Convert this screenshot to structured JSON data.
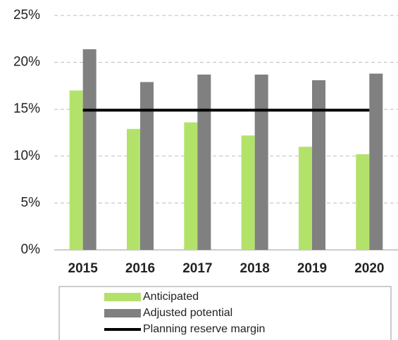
{
  "chart_data": {
    "type": "bar",
    "categories": [
      "2015",
      "2016",
      "2017",
      "2018",
      "2019",
      "2020"
    ],
    "series": [
      {
        "name": "Anticipated",
        "color": "#b3e26a",
        "type": "bar",
        "values": [
          17.0,
          12.9,
          13.6,
          12.2,
          11.0,
          10.2
        ]
      },
      {
        "name": "Adjusted potential",
        "color": "#808080",
        "type": "bar",
        "values": [
          21.4,
          17.9,
          18.7,
          18.7,
          18.1,
          18.8
        ]
      },
      {
        "name": "Planning reserve margin",
        "color": "#000000",
        "type": "line",
        "values": [
          14.9,
          14.9,
          14.9,
          14.9,
          14.9,
          14.9
        ]
      }
    ],
    "ylim": [
      0,
      25
    ],
    "yticks": [
      {
        "value": 0,
        "label": "0%"
      },
      {
        "value": 5,
        "label": "5%"
      },
      {
        "value": 10,
        "label": "10%"
      },
      {
        "value": 15,
        "label": "15%"
      },
      {
        "value": 20,
        "label": "20%"
      },
      {
        "value": 25,
        "label": "25%"
      }
    ],
    "grid": true,
    "legend": "bottom"
  }
}
